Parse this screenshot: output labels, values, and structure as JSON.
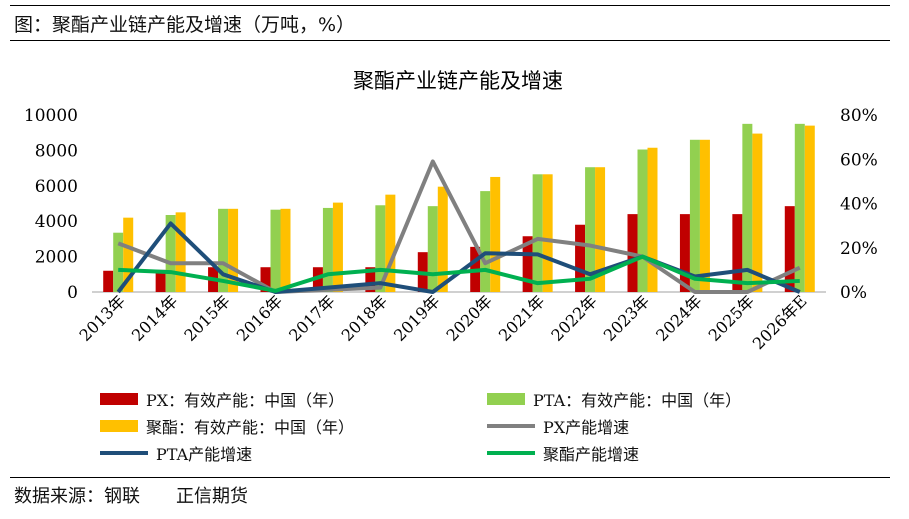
{
  "caption": "图：聚酯产业链产能及增速（万吨，%）",
  "source": "数据来源：钢联　　正信期货",
  "chart_data": {
    "type": "bar",
    "title": "聚酯产业链产能及增速",
    "categories": [
      "2013年",
      "2014年",
      "2015年",
      "2016年",
      "2017年",
      "2018年",
      "2019年",
      "2020年",
      "2021年",
      "2022年",
      "2023年",
      "2024年",
      "2025年",
      "2026年E"
    ],
    "y_left": {
      "min": 0,
      "max": 10000,
      "ticks": [
        "0",
        "2000",
        "4000",
        "6000",
        "8000",
        "10000"
      ]
    },
    "y_right": {
      "min": 0,
      "max": 80,
      "ticks": [
        "0%",
        "20%",
        "40%",
        "60%",
        "80%"
      ]
    },
    "grid": false,
    "legend_position": "bottom",
    "bar_series": [
      {
        "name": "PX：有效产能：中国（年）",
        "color": "#C00000",
        "values": [
          1200,
          1250,
          1400,
          1400,
          1400,
          1400,
          2250,
          2550,
          3150,
          3800,
          4400,
          4400,
          4400,
          4850
        ]
      },
      {
        "name": "PTA：有效产能：中国（年）",
        "color": "#92D050",
        "values": [
          3350,
          4350,
          4700,
          4650,
          4750,
          4900,
          4850,
          5700,
          6650,
          7050,
          8050,
          8600,
          9500,
          9500
        ]
      },
      {
        "name": "聚酯：有效产能：中国（年）",
        "color": "#FFC000",
        "values": [
          4200,
          4500,
          4700,
          4700,
          5050,
          5500,
          5950,
          6500,
          6650,
          7050,
          8150,
          8600,
          8950,
          9400
        ]
      }
    ],
    "line_series": [
      {
        "name": "PX产能增速",
        "color": "#808080",
        "axis": "right",
        "values": [
          22,
          13,
          13,
          0,
          1,
          2,
          59,
          13,
          24,
          21,
          16,
          0,
          0,
          11
        ]
      },
      {
        "name": "PTA产能增速",
        "color": "#1F4E79",
        "axis": "right",
        "values": [
          0,
          31,
          8,
          0,
          2,
          4,
          0,
          17.5,
          17,
          8,
          16,
          7,
          10,
          0
        ]
      },
      {
        "name": "聚酯产能增速",
        "color": "#00B050",
        "axis": "right",
        "values": [
          10,
          9,
          5,
          0.5,
          8,
          10,
          8,
          10,
          4,
          6,
          16,
          6,
          4,
          5
        ]
      }
    ]
  }
}
